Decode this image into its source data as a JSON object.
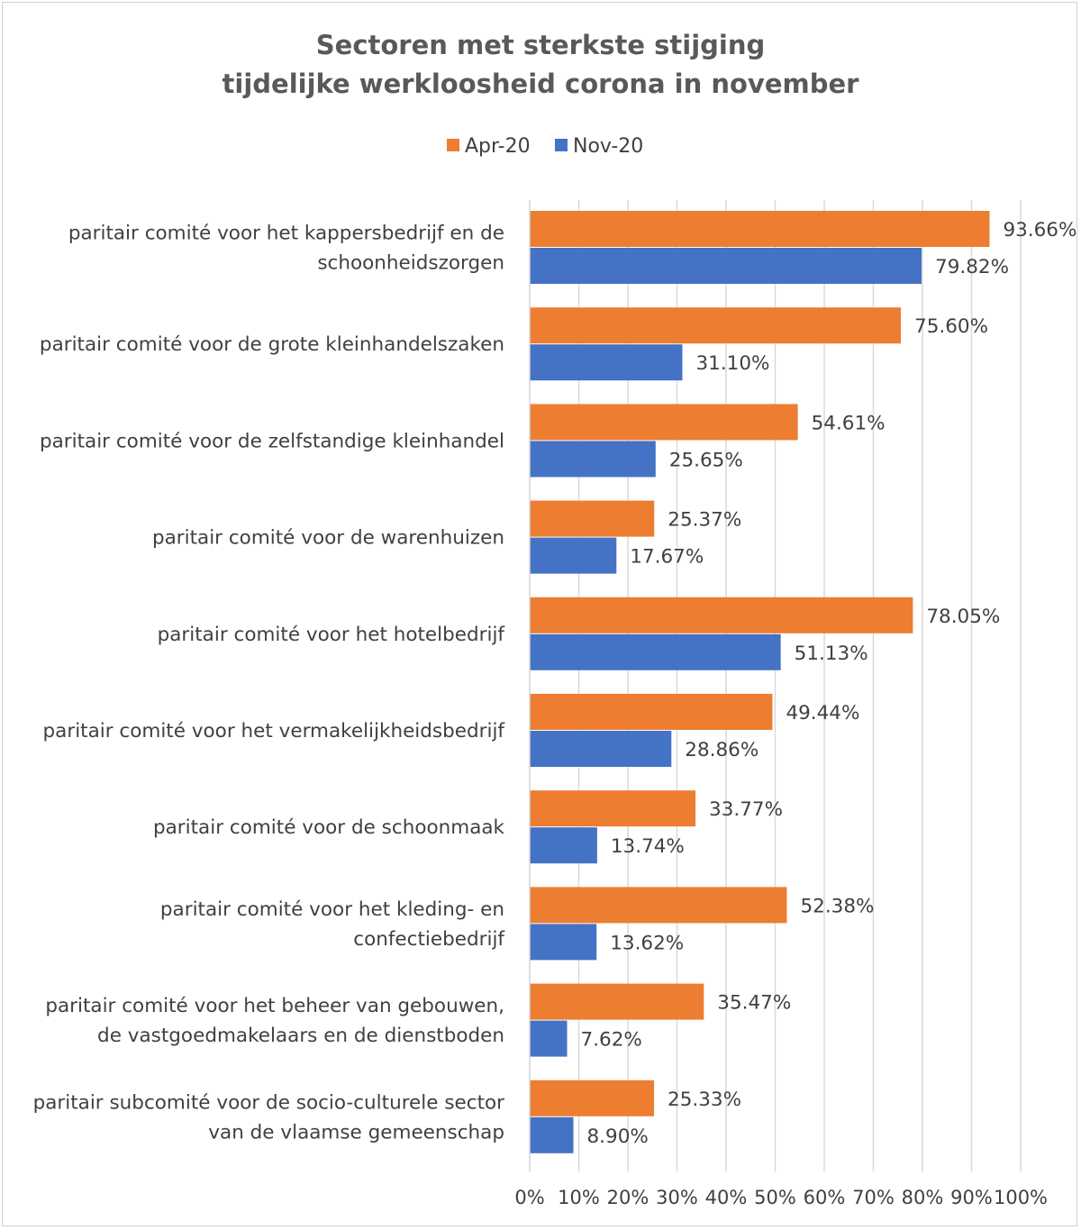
{
  "chart_data": {
    "type": "bar",
    "orientation": "horizontal",
    "title": [
      "Sectoren met sterkste stijging",
      "tijdelijke werkloosheid corona  in november"
    ],
    "xlabel": "",
    "ylabel": "",
    "xlim": [
      0,
      100
    ],
    "x_ticks": [
      "0%",
      "10%",
      "20%",
      "30%",
      "40%",
      "50%",
      "60%",
      "70%",
      "80%",
      "90%",
      "100%"
    ],
    "grid": "vertical",
    "legend_position": "top",
    "categories": [
      [
        "paritair comité voor het kappersbedrijf en de",
        "schoonheidszorgen"
      ],
      [
        "paritair comité voor de grote kleinhandelszaken"
      ],
      [
        "paritair comité voor de zelfstandige kleinhandel"
      ],
      [
        "paritair comité voor de warenhuizen"
      ],
      [
        "paritair comité voor het hotelbedrijf"
      ],
      [
        "paritair comité voor het vermakelijkheidsbedrijf"
      ],
      [
        "paritair comité voor de schoonmaak"
      ],
      [
        "paritair comité voor het kleding- en",
        "confectiebedrijf"
      ],
      [
        "paritair comité voor het beheer van gebouwen,",
        "de vastgoedmakelaars en de dienstboden"
      ],
      [
        "paritair subcomité voor de socio-culturele sector",
        "van de vlaamse gemeenschap"
      ]
    ],
    "series": [
      {
        "name": "Apr-20",
        "color": "#ED7D31",
        "values": [
          93.66,
          75.6,
          54.61,
          25.37,
          78.05,
          49.44,
          33.77,
          52.38,
          35.47,
          25.33
        ],
        "labels": [
          "93.66%",
          "75.60%",
          "54.61%",
          "25.37%",
          "78.05%",
          "49.44%",
          "33.77%",
          "52.38%",
          "35.47%",
          "25.33%"
        ]
      },
      {
        "name": "Nov-20",
        "color": "#4472C4",
        "values": [
          79.82,
          31.1,
          25.65,
          17.67,
          51.13,
          28.86,
          13.74,
          13.62,
          7.62,
          8.9
        ],
        "labels": [
          "79.82%",
          "31.10%",
          "25.65%",
          "17.67%",
          "51.13%",
          "28.86%",
          "13.74%",
          "13.62%",
          "7.62%",
          "8.90%"
        ]
      }
    ]
  }
}
